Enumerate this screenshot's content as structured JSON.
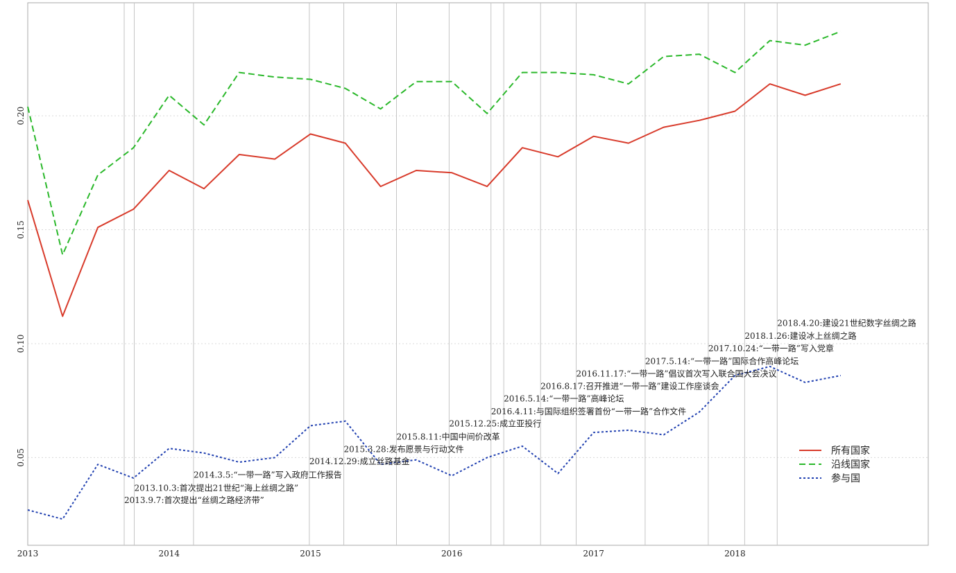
{
  "chart_data": {
    "type": "line",
    "title": "",
    "xlabel": "",
    "ylabel": "",
    "x": [
      "2013Q1",
      "2013Q2",
      "2013Q3",
      "2013Q4",
      "2014Q1",
      "2014Q2",
      "2014Q3",
      "2014Q4",
      "2015Q1",
      "2015Q2",
      "2015Q3",
      "2015Q4",
      "2016Q1",
      "2016Q2",
      "2016Q3",
      "2016Q4",
      "2017Q1",
      "2017Q2",
      "2017Q3",
      "2017Q4",
      "2018Q1",
      "2018Q2",
      "2018Q3",
      "2018Q4"
    ],
    "xlim": [
      "2013-01-01",
      "2019-05-15"
    ],
    "ylim": [
      0.0115,
      0.2496
    ],
    "x_ticks": [
      {
        "date": "2013-01-01",
        "label": "2013"
      },
      {
        "date": "2014-01-01",
        "label": "2014"
      },
      {
        "date": "2015-01-01",
        "label": "2015"
      },
      {
        "date": "2016-01-01",
        "label": "2016"
      },
      {
        "date": "2017-01-01",
        "label": "2017"
      },
      {
        "date": "2018-01-01",
        "label": "2018"
      }
    ],
    "y_ticks": [
      {
        "value": 0.05,
        "label": "0.05"
      },
      {
        "value": 0.1,
        "label": "0.10"
      },
      {
        "value": 0.15,
        "label": "0.15"
      },
      {
        "value": 0.2,
        "label": "0.20"
      }
    ],
    "grid": "on (dotted horizontal at y ticks)",
    "series": [
      {
        "name": "所有国家",
        "color": "#d83a2a",
        "dash": "solid",
        "values": [
          0.163,
          0.112,
          0.151,
          0.159,
          0.176,
          0.168,
          0.183,
          0.181,
          0.192,
          0.188,
          0.169,
          0.176,
          0.175,
          0.169,
          0.186,
          0.182,
          0.191,
          0.188,
          0.195,
          0.198,
          0.202,
          0.214,
          0.209,
          0.214
        ]
      },
      {
        "name": "沿线国家",
        "color": "#2ab82a",
        "dash": "dashed",
        "values": [
          0.204,
          0.139,
          0.174,
          0.186,
          0.209,
          0.196,
          0.219,
          0.217,
          0.216,
          0.212,
          0.203,
          0.215,
          0.215,
          0.201,
          0.219,
          0.219,
          0.218,
          0.214,
          0.226,
          0.227,
          0.219,
          0.233,
          0.231,
          0.237
        ]
      },
      {
        "name": "参与国",
        "color": "#1f3fb0",
        "dash": "dotted",
        "values": [
          0.027,
          0.023,
          0.047,
          0.041,
          0.054,
          0.052,
          0.048,
          0.05,
          0.064,
          0.066,
          0.047,
          0.049,
          0.042,
          0.05,
          0.055,
          0.043,
          0.061,
          0.062,
          0.06,
          0.07,
          0.086,
          0.09,
          0.083,
          0.086
        ]
      }
    ],
    "event_lines": [
      {
        "date": "2013-09-07",
        "label": "2013.9.7:首次提出“丝绸之路经济带”",
        "label_y": 0.0301
      },
      {
        "date": "2013-10-03",
        "label": "2013.10.3:首次提出21世纪“海上丝绸之路”",
        "label_y": 0.0354
      },
      {
        "date": "2014-03-05",
        "label": "2014.3.5:“一带一路”写入政府工作报告",
        "label_y": 0.0411
      },
      {
        "date": "2014-12-29",
        "label": "2014.12.29:成立丝路基金",
        "label_y": 0.0471
      },
      {
        "date": "2015-03-28",
        "label": "2015.3.28:发布愿景与行动文件",
        "label_y": 0.0524
      },
      {
        "date": "2015-08-11",
        "label": "2015.8.11:中国中间价改革",
        "label_y": 0.0579
      },
      {
        "date": "2015-12-25",
        "label": "2015.12.25:成立亚投行",
        "label_y": 0.0636
      },
      {
        "date": "2016-04-11",
        "label": "2016.4.11:与国际组织签署首份“一带一路”合作文件",
        "label_y": 0.0689
      },
      {
        "date": "2016-05-14",
        "label": "2016.5.14:“一带一路”高峰论坛",
        "label_y": 0.0746
      },
      {
        "date": "2016-08-17",
        "label": "2016.8.17:召开推进“一带一路”建设工作座谈会",
        "label_y": 0.0801
      },
      {
        "date": "2016-11-17",
        "label": "2016.11.17:“一带一路”倡议首次写入联合国大会决议",
        "label_y": 0.0855
      },
      {
        "date": "2017-05-14",
        "label": "2017.5.14:“一带一路”国际合作高峰论坛",
        "label_y": 0.091
      },
      {
        "date": "2017-10-24",
        "label": "2017.10.24:“一带一路”写入党章",
        "label_y": 0.0966
      },
      {
        "date": "2018-01-26",
        "label": "2018.1.26:建设冰上丝绸之路",
        "label_y": 0.1021
      },
      {
        "date": "2018-04-20",
        "label": "2018.4.20:建设21世纪数字丝绸之路",
        "label_y": 0.1077
      }
    ],
    "legend": {
      "position": "lower-right",
      "entries": [
        "所有国家",
        "沿线国家",
        "参与国"
      ]
    }
  }
}
